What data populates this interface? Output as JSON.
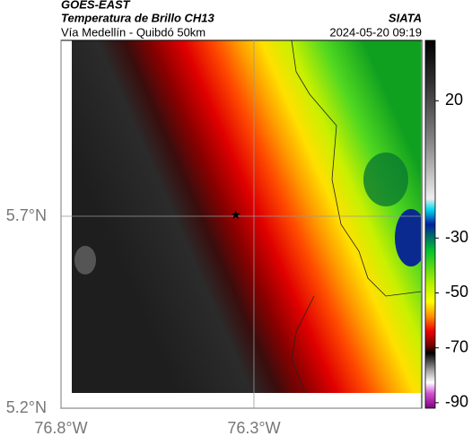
{
  "header": {
    "agency": "GOES-EAST",
    "product": "Temperatura de Brillo CH13",
    "route": "Vía Medellín - Quibdó 50km",
    "source": "SIATA",
    "timestamp": "2024-05-20 09:19"
  },
  "map": {
    "lon_lim": [
      -76.8,
      -75.865
    ],
    "lat_lim": [
      5.2,
      6.158
    ],
    "lon_ticks": [
      {
        "value": -76.8,
        "label": "76.8°W"
      },
      {
        "value": -76.3,
        "label": "76.3°W"
      }
    ],
    "lat_ticks": [
      {
        "value": 5.7,
        "label": "5.7°N"
      },
      {
        "value": 5.2,
        "label": "5.2°N"
      }
    ],
    "marker": {
      "lon": -76.347,
      "lat": 5.702
    },
    "grid": true
  },
  "colorbar": {
    "lim": [
      -92,
      42
    ],
    "ticks": [
      20,
      -30,
      -50,
      -70,
      -90
    ]
  }
}
